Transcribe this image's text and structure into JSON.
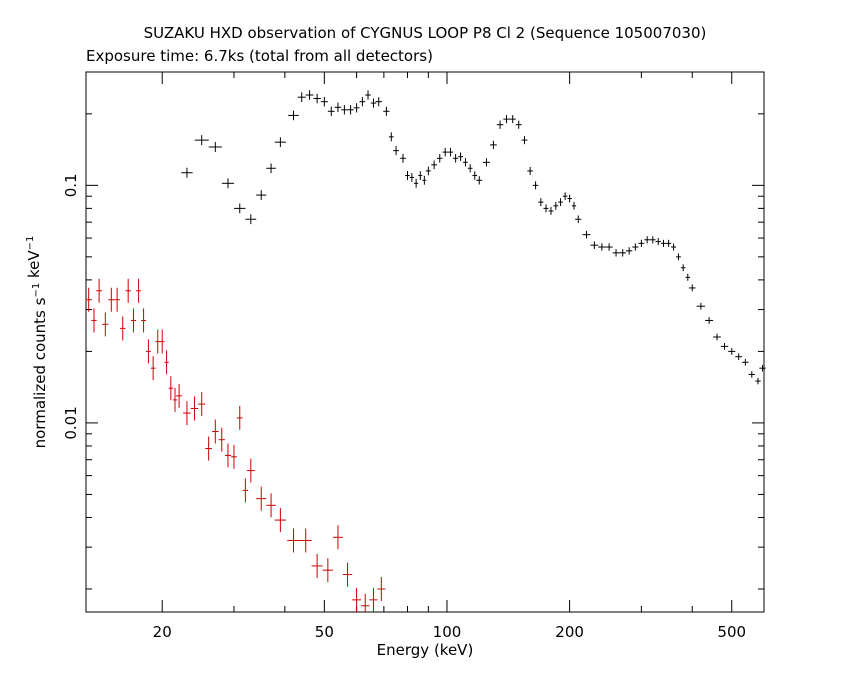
{
  "chart_data": {
    "type": "scatter",
    "title": "SUZAKU HXD observation of CYGNUS LOOP P8 Cl 2 (Sequence 105007030)",
    "subtitle": "Exposure time: 6.7ks (total from all detectors)",
    "xlabel": "Energy (keV)",
    "ylabel": "normalized counts s^-1 keV^-1",
    "x_scale": "log",
    "y_scale": "log",
    "xlim": [
      13,
      600
    ],
    "ylim": [
      0.0016,
      0.3
    ],
    "x_ticks": [
      {
        "value": 20,
        "label": "20"
      },
      {
        "value": 50,
        "label": "50"
      },
      {
        "value": 100,
        "label": "100"
      },
      {
        "value": 200,
        "label": "200"
      },
      {
        "value": 500,
        "label": "500"
      }
    ],
    "y_ticks": [
      {
        "value": 0.1,
        "label": "0.1"
      },
      {
        "value": 0.01,
        "label": "0.01"
      }
    ],
    "grid": false,
    "legend": "none",
    "series": [
      {
        "color": "#000000",
        "points": [
          [
            23,
            0.113
          ],
          [
            25,
            0.155
          ],
          [
            27,
            0.145
          ],
          [
            29,
            0.102
          ],
          [
            31,
            0.08
          ],
          [
            33,
            0.072
          ],
          [
            35,
            0.091
          ],
          [
            37,
            0.118
          ],
          [
            39,
            0.152
          ],
          [
            42,
            0.197
          ],
          [
            44,
            0.235
          ],
          [
            46,
            0.24
          ],
          [
            48,
            0.232
          ],
          [
            50,
            0.225
          ],
          [
            52,
            0.205
          ],
          [
            54,
            0.213
          ],
          [
            56,
            0.208
          ],
          [
            58,
            0.208
          ],
          [
            60,
            0.212
          ],
          [
            62,
            0.225
          ],
          [
            64,
            0.24
          ],
          [
            66,
            0.222
          ],
          [
            68,
            0.225
          ],
          [
            71,
            0.205
          ],
          [
            73,
            0.16
          ],
          [
            75,
            0.14
          ],
          [
            78,
            0.13
          ],
          [
            80,
            0.11
          ],
          [
            82,
            0.108
          ],
          [
            84,
            0.102
          ],
          [
            86,
            0.11
          ],
          [
            88,
            0.105
          ],
          [
            90,
            0.115
          ],
          [
            93,
            0.122
          ],
          [
            96,
            0.13
          ],
          [
            99,
            0.138
          ],
          [
            102,
            0.138
          ],
          [
            105,
            0.13
          ],
          [
            108,
            0.132
          ],
          [
            111,
            0.125
          ],
          [
            114,
            0.118
          ],
          [
            117,
            0.11
          ],
          [
            120,
            0.105
          ],
          [
            125,
            0.125
          ],
          [
            130,
            0.148
          ],
          [
            135,
            0.18
          ],
          [
            140,
            0.19
          ],
          [
            145,
            0.19
          ],
          [
            150,
            0.18
          ],
          [
            155,
            0.155
          ],
          [
            160,
            0.115
          ],
          [
            165,
            0.1
          ],
          [
            170,
            0.085
          ],
          [
            175,
            0.08
          ],
          [
            180,
            0.078
          ],
          [
            185,
            0.082
          ],
          [
            190,
            0.085
          ],
          [
            195,
            0.09
          ],
          [
            200,
            0.088
          ],
          [
            205,
            0.082
          ],
          [
            210,
            0.072
          ],
          [
            220,
            0.062
          ],
          [
            230,
            0.056
          ],
          [
            240,
            0.055
          ],
          [
            250,
            0.055
          ],
          [
            260,
            0.052
          ],
          [
            270,
            0.052
          ],
          [
            280,
            0.053
          ],
          [
            290,
            0.055
          ],
          [
            300,
            0.057
          ],
          [
            310,
            0.059
          ],
          [
            320,
            0.059
          ],
          [
            330,
            0.058
          ],
          [
            340,
            0.057
          ],
          [
            350,
            0.057
          ],
          [
            360,
            0.055
          ],
          [
            370,
            0.05
          ],
          [
            380,
            0.045
          ],
          [
            390,
            0.041
          ],
          [
            400,
            0.037
          ],
          [
            420,
            0.031
          ],
          [
            440,
            0.027
          ],
          [
            460,
            0.023
          ],
          [
            480,
            0.021
          ],
          [
            500,
            0.02
          ],
          [
            520,
            0.019
          ],
          [
            540,
            0.018
          ],
          [
            560,
            0.016
          ],
          [
            580,
            0.015
          ],
          [
            595,
            0.017
          ]
        ]
      },
      {
        "color": "#cc0000",
        "points": [
          [
            13.2,
            0.033
          ],
          [
            13.6,
            0.027
          ],
          [
            14,
            0.036
          ],
          [
            14.5,
            0.026
          ],
          [
            15,
            0.033
          ],
          [
            15.5,
            0.033
          ],
          [
            16,
            0.025
          ],
          [
            16.5,
            0.036
          ],
          [
            17,
            0.027
          ],
          [
            17.5,
            0.036
          ],
          [
            18,
            0.027
          ],
          [
            18.5,
            0.02
          ],
          [
            19,
            0.017
          ],
          [
            19.5,
            0.022
          ],
          [
            20,
            0.022
          ],
          [
            20.5,
            0.018
          ],
          [
            21,
            0.014
          ],
          [
            21.5,
            0.0125
          ],
          [
            22,
            0.013
          ],
          [
            23,
            0.011
          ],
          [
            24,
            0.0115
          ],
          [
            25,
            0.012
          ],
          [
            26,
            0.0078
          ],
          [
            27,
            0.0092
          ],
          [
            28,
            0.0085
          ],
          [
            29,
            0.0073
          ],
          [
            30,
            0.0072
          ],
          [
            31,
            0.0105
          ],
          [
            32,
            0.0052
          ],
          [
            33,
            0.0063
          ],
          [
            35,
            0.0048
          ],
          [
            37,
            0.0045
          ],
          [
            39,
            0.0039
          ],
          [
            42,
            0.0032
          ],
          [
            45,
            0.0032
          ],
          [
            48,
            0.0025
          ],
          [
            51,
            0.0024
          ],
          [
            54,
            0.0033
          ],
          [
            57,
            0.0023
          ],
          [
            60,
            0.0018
          ],
          [
            63,
            0.0017
          ],
          [
            66,
            0.0018
          ],
          [
            69,
            0.002
          ]
        ]
      }
    ]
  }
}
